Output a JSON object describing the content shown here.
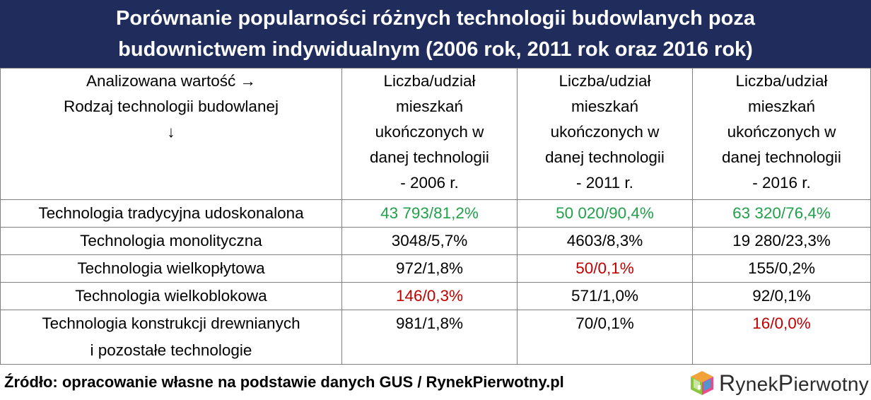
{
  "title": {
    "line1": "Porównanie popularności różnych technologii budowlanych poza",
    "line2": "budownictwem indywidualnym (2006 rok, 2011 rok oraz 2016 rok)"
  },
  "table": {
    "header_corner": [
      "Analizowana wartość →",
      "Rodzaj technologii budowlanej",
      "↓"
    ],
    "columns": [
      [
        "Liczba/udział",
        "mieszkań",
        "ukończonych w",
        "danej technologii",
        "- 2006 r."
      ],
      [
        "Liczba/udział",
        "mieszkań",
        "ukończonych w",
        "danej technologii",
        "- 2011 r."
      ],
      [
        "Liczba/udział",
        "mieszkań",
        "ukończonych w",
        "danej technologii",
        "- 2016 r."
      ]
    ],
    "rows": [
      {
        "label": [
          "Technologia tradycyjna udoskonalona"
        ],
        "values": [
          "43 793/81,2%",
          "50 020/90,4%",
          "63 320/76,4%"
        ],
        "styles": [
          "green",
          "green",
          "green"
        ]
      },
      {
        "label": [
          "Technologia monolityczna"
        ],
        "values": [
          "3048/5,7%",
          "4603/8,3%",
          "19 280/23,3%"
        ],
        "styles": [
          "bold",
          "bold",
          "bold"
        ]
      },
      {
        "label": [
          "Technologia wielkopłytowa"
        ],
        "values": [
          "972/1,8%",
          "50/0,1%",
          "155/0,2%"
        ],
        "styles": [
          "",
          "red",
          ""
        ]
      },
      {
        "label": [
          "Technologia wielkoblokowa"
        ],
        "values": [
          "146/0,3%",
          "571/1,0%",
          "92/0,1%"
        ],
        "styles": [
          "red",
          "",
          ""
        ]
      },
      {
        "label": [
          "Technologia konstrukcji drewnianych",
          "i pozostałe technologie"
        ],
        "values": [
          "981/1,8%",
          "70/0,1%",
          "16/0,0%"
        ],
        "styles": [
          "",
          "",
          "red"
        ]
      }
    ]
  },
  "footer": {
    "source": "Źródło: opracowanie własne na podstawie danych GUS / RynekPierwotny.pl"
  },
  "logo": {
    "part1_initial": "R",
    "part1_rest": "ynek",
    "part2_initial": "P",
    "part2_rest": "ierwotny"
  },
  "colors": {
    "title_bg": "#1f2c5c",
    "highlight_green": "#22a04b",
    "highlight_red": "#c00000"
  }
}
